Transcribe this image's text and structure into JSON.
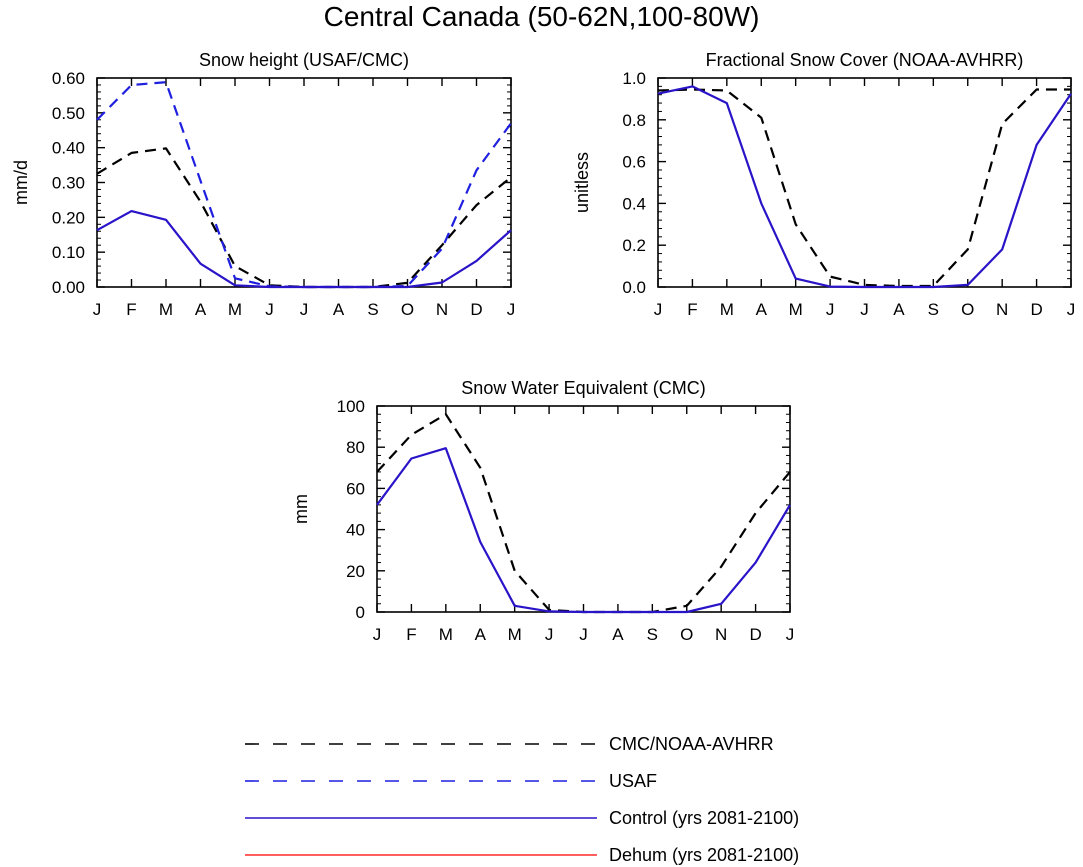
{
  "title": "Central Canada (50-62N,100-80W)",
  "colors": {
    "obs": "#000000",
    "usaf": "#1f1fe0",
    "control": "#2a14c8",
    "dehum": "#ff2a2a"
  },
  "legend": [
    {
      "label": "CMC/NOAA-AVHRR",
      "color": "#000000",
      "dash": true
    },
    {
      "label": "USAF",
      "color": "#1f1fe0",
      "dash": true
    },
    {
      "label": "Control (yrs 2081-2100)",
      "color": "#2a14c8",
      "dash": false
    },
    {
      "label": "Dehum (yrs 2081-2100)",
      "color": "#ff2a2a",
      "dash": false
    }
  ],
  "chart_data": [
    {
      "type": "line",
      "title": "Snow height (USAF/CMC)",
      "ylabel": "mm/d",
      "xlabel": "",
      "categories": [
        "J",
        "F",
        "M",
        "A",
        "M",
        "J",
        "J",
        "A",
        "S",
        "O",
        "N",
        "D",
        "J"
      ],
      "ylim": [
        0,
        0.6
      ],
      "yticks": [
        "0.00",
        "0.10",
        "0.20",
        "0.30",
        "0.40",
        "0.50",
        "0.60"
      ],
      "series": [
        {
          "name": "CMC/NOAA-AVHRR",
          "style": "dash",
          "color": "#000000",
          "values": [
            0.325,
            0.385,
            0.398,
            0.245,
            0.06,
            0.005,
            0,
            0,
            0,
            0.012,
            0.12,
            0.235,
            0.315
          ]
        },
        {
          "name": "USAF",
          "style": "dash",
          "color": "#1f1fe0",
          "values": [
            0.48,
            0.58,
            0.588,
            0.305,
            0.025,
            0.002,
            0,
            0,
            0,
            0.003,
            0.11,
            0.335,
            0.47
          ]
        },
        {
          "name": "Control (yrs 2081-2100)",
          "style": "solid",
          "color": "#2a14c8",
          "values": [
            0.163,
            0.218,
            0.193,
            0.067,
            0.005,
            0,
            0,
            0,
            0,
            0,
            0.013,
            0.075,
            0.163
          ]
        }
      ]
    },
    {
      "type": "line",
      "title": "Fractional Snow Cover (NOAA-AVHRR)",
      "ylabel": "unitless",
      "xlabel": "",
      "categories": [
        "J",
        "F",
        "M",
        "A",
        "M",
        "J",
        "J",
        "A",
        "S",
        "O",
        "N",
        "D",
        "J"
      ],
      "ylim": [
        0,
        1.0
      ],
      "yticks": [
        "0.0",
        "0.2",
        "0.4",
        "0.6",
        "0.8",
        "1.0"
      ],
      "series": [
        {
          "name": "CMC/NOAA-AVHRR",
          "style": "dash",
          "color": "#000000",
          "values": [
            0.94,
            0.945,
            0.94,
            0.81,
            0.3,
            0.05,
            0.01,
            0.005,
            0.005,
            0.18,
            0.78,
            0.945,
            0.945
          ]
        },
        {
          "name": "Control (yrs 2081-2100)",
          "style": "solid",
          "color": "#2a14c8",
          "values": [
            0.925,
            0.96,
            0.88,
            0.4,
            0.04,
            0.002,
            0,
            0,
            0,
            0.01,
            0.18,
            0.68,
            0.925
          ]
        }
      ]
    },
    {
      "type": "line",
      "title": "Snow Water Equivalent (CMC)",
      "ylabel": "mm",
      "xlabel": "",
      "categories": [
        "J",
        "F",
        "M",
        "A",
        "M",
        "J",
        "J",
        "A",
        "S",
        "O",
        "N",
        "D",
        "J"
      ],
      "ylim": [
        0,
        100
      ],
      "yticks": [
        "0",
        "20",
        "40",
        "60",
        "80",
        "100"
      ],
      "series": [
        {
          "name": "CMC/NOAA-AVHRR",
          "style": "dash",
          "color": "#000000",
          "values": [
            68,
            86,
            96,
            70,
            20,
            1,
            0,
            0,
            0,
            3,
            22,
            48,
            68
          ]
        },
        {
          "name": "Control (yrs 2081-2100)",
          "style": "solid",
          "color": "#2a14c8",
          "values": [
            52,
            74.5,
            79.5,
            34,
            3,
            0.3,
            0,
            0,
            0,
            0,
            4,
            24,
            52
          ]
        }
      ]
    }
  ]
}
